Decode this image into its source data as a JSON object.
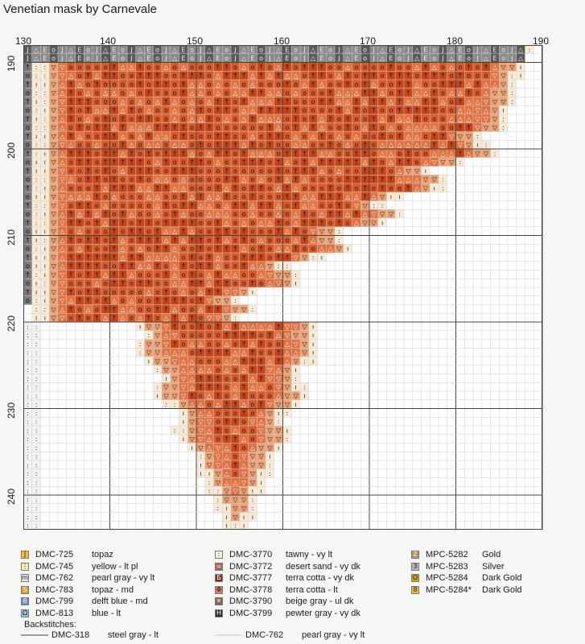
{
  "title": "Venetian mask by Carnevale",
  "col_labels": [
    "130",
    "140",
    "150",
    "160",
    "170",
    "180",
    "190"
  ],
  "row_labels": [
    "190",
    "200",
    "210",
    "220",
    "230",
    "240"
  ],
  "legend_columns": [
    [
      {
        "code": "DMC-725",
        "name": "topaz",
        "color": "#f2c23a",
        "symbol": "J"
      },
      {
        "code": "DMC-745",
        "name": "yellow - lt pl",
        "color": "#fbecb4",
        "symbol": "⋮"
      },
      {
        "code": "DMC-762",
        "name": "pearl gray - vy lt",
        "color": "#e8e8e8",
        "symbol": "m"
      },
      {
        "code": "DMC-783",
        "name": "topaz - md",
        "color": "#e4a21f",
        "symbol": "S"
      },
      {
        "code": "DMC-799",
        "name": "delft blue - md",
        "color": "#6f8ed0",
        "symbol": "8"
      },
      {
        "code": "DMC-813",
        "name": "blue - lt",
        "color": "#9cc4e4",
        "symbol": "Ω"
      }
    ],
    [
      {
        "code": "DMC-3770",
        "name": "tawny - vy lt",
        "color": "#fbf0e0",
        "symbol": ":"
      },
      {
        "code": "DMC-3772",
        "name": "desert sand - vy dk",
        "color": "#a66a4c",
        "symbol": "="
      },
      {
        "code": "DMC-3777",
        "name": "terra cotta - vy dk",
        "color": "#8a2e1f",
        "symbol": "Б"
      },
      {
        "code": "DMC-3778",
        "name": "terra cotta - lt",
        "color": "#d9826a",
        "symbol": "Φ"
      },
      {
        "code": "DMC-3790",
        "name": "beige gray - ul dk",
        "color": "#7a6a54",
        "symbol": "✕"
      },
      {
        "code": "DMC-3799",
        "name": "pewter gray - vy dk",
        "color": "#2e2e32",
        "symbol": "H"
      }
    ],
    [
      {
        "code": "MPC-5282",
        "name": "Gold",
        "color": "#b0925a",
        "symbol": "Z"
      },
      {
        "code": "MPC-5283",
        "name": "Silver",
        "color": "#b8b8b8",
        "symbol": "3"
      },
      {
        "code": "MPC-5284",
        "name": "Dark Gold",
        "color": "#d0a400",
        "symbol": "O"
      },
      {
        "code": "MPC-5284*",
        "name": "Dark Gold",
        "color": "#e4c040",
        "symbol": "8"
      }
    ]
  ],
  "backstitches_label": "Backstitches:",
  "backstitches": [
    {
      "code": "DMC-318",
      "name": "steel gray - lt",
      "color": "#9a9ca0"
    },
    {
      "code": "DMC-762",
      "name": "pearl gray - vy lt",
      "color": "#e6e6e6"
    }
  ]
}
